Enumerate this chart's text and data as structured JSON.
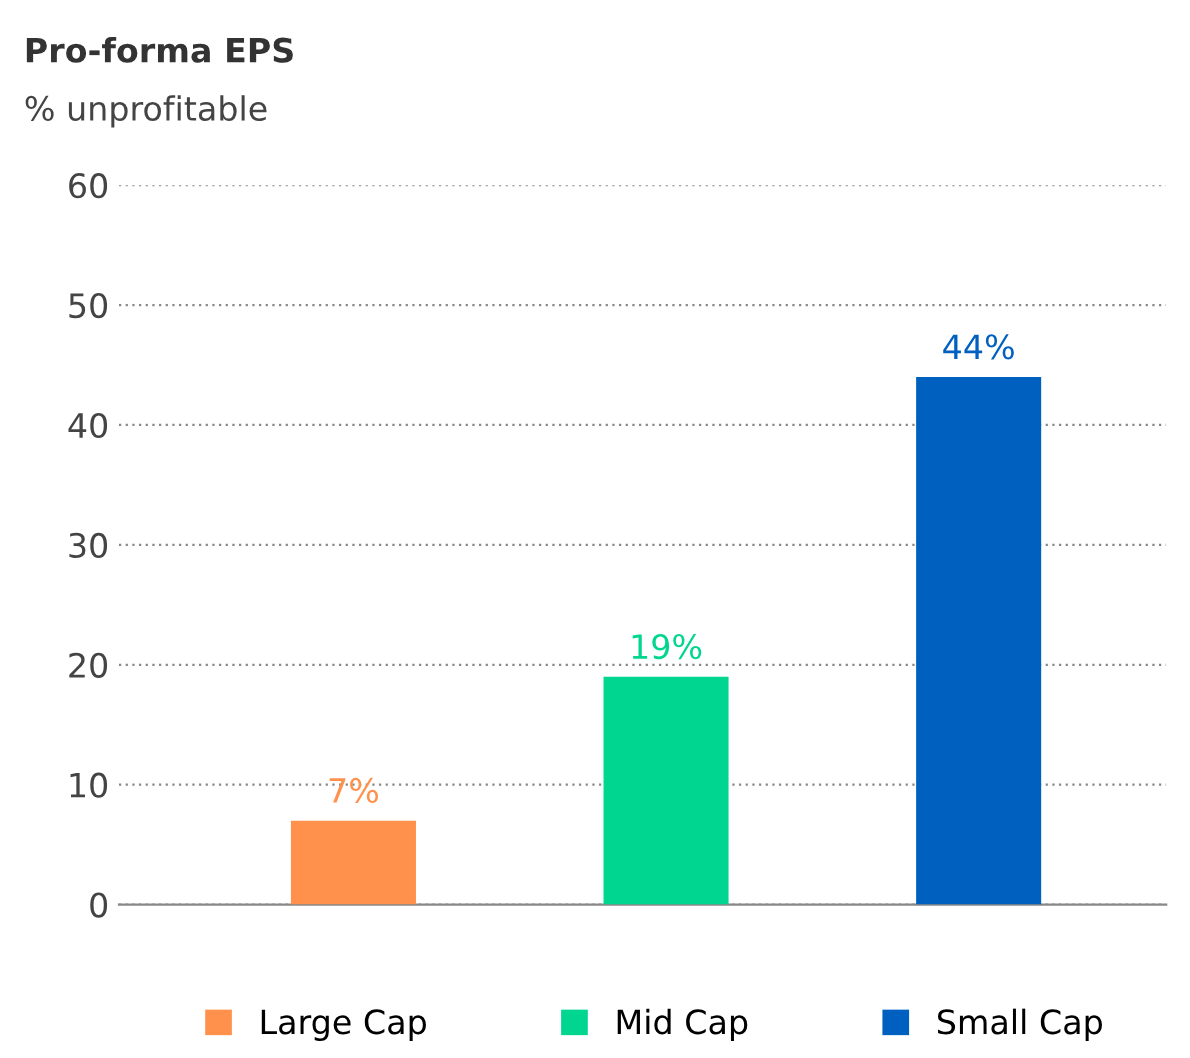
{
  "chart_data": {
    "type": "bar",
    "title": "Pro-forma EPS",
    "ylabel": "% unprofitable",
    "categories": [
      null,
      null,
      null
    ],
    "series": [
      {
        "name": "Large Cap",
        "color": "#ff914d",
        "values": [
          7,
          null,
          null
        ],
        "value_labels": [
          "7%",
          null,
          null
        ]
      },
      {
        "name": "Mid Cap",
        "color": "#00d68f",
        "values": [
          null,
          19,
          null
        ],
        "value_labels": [
          null,
          "19%",
          null
        ]
      },
      {
        "name": "Small Cap",
        "color": "#0060c0",
        "values": [
          null,
          null,
          44
        ],
        "value_labels": [
          null,
          null,
          "44%"
        ]
      }
    ],
    "ylim": [
      0,
      60
    ],
    "yticks": [
      0,
      10,
      20,
      30,
      40,
      50,
      60
    ],
    "grid": "y",
    "legend": "bottom"
  }
}
